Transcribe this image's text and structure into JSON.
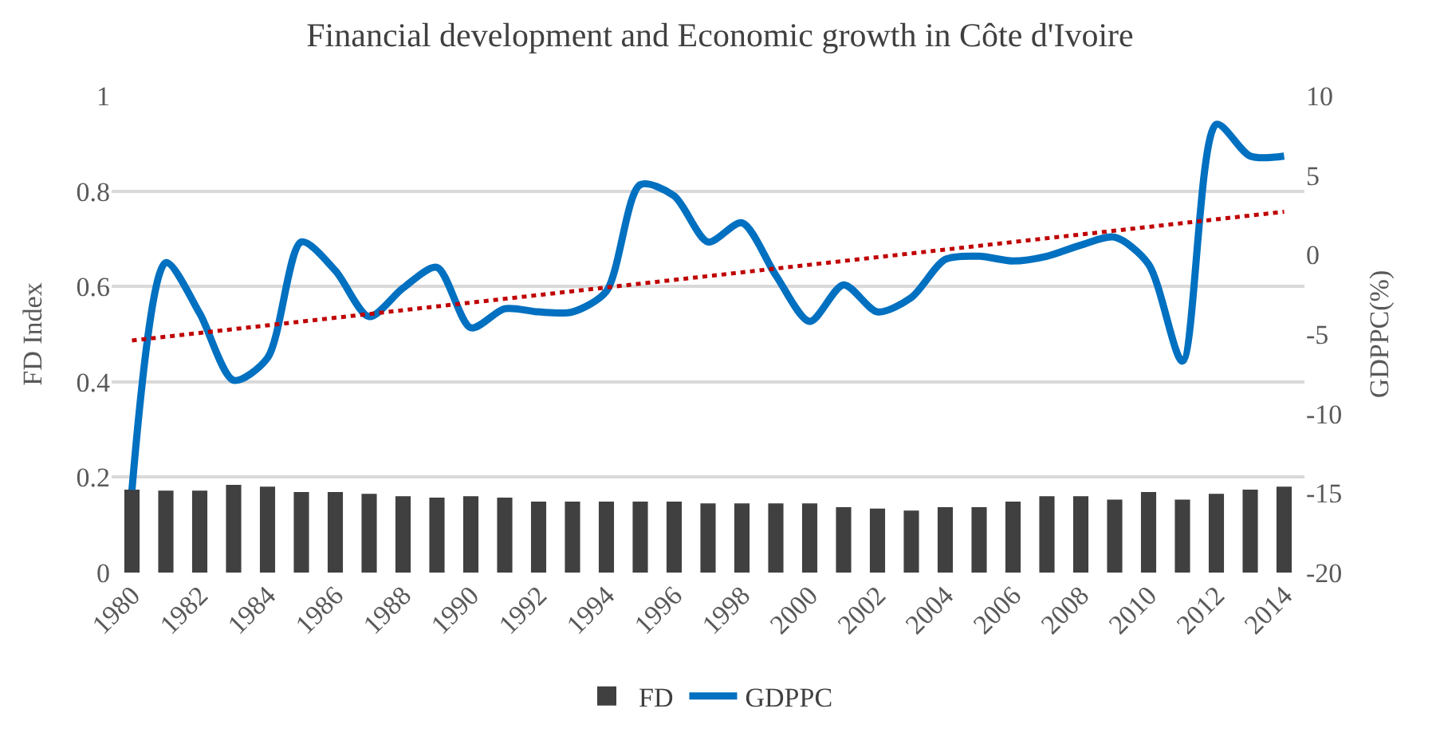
{
  "chart_data": {
    "type": "bar",
    "title": "Financial development and Economic growth in Côte d'Ivoire",
    "ylabel": "FD Index",
    "y2label": "GDPPC(%)",
    "categories": [
      "1980",
      null,
      "1982",
      null,
      "1984",
      null,
      "1986",
      null,
      "1988",
      null,
      "1990",
      null,
      "1992",
      null,
      "1994",
      null,
      "1996",
      null,
      "1998",
      null,
      "2000",
      null,
      "2002",
      null,
      "2004",
      null,
      "2006",
      null,
      "2008",
      null,
      "2010",
      null,
      "2012",
      null,
      "2014"
    ],
    "series": [
      {
        "name": "FD",
        "color": "#404040",
        "values": [
          0.174,
          0.172,
          0.172,
          0.184,
          0.18,
          0.169,
          0.169,
          0.165,
          0.16,
          0.157,
          0.16,
          0.157,
          0.149,
          0.149,
          0.149,
          0.149,
          0.149,
          0.145,
          0.145,
          0.145,
          0.145,
          0.137,
          0.134,
          0.13,
          0.137,
          0.137,
          0.149,
          0.16,
          0.16,
          0.153,
          0.169,
          0.153,
          0.165,
          0.174,
          0.18
        ]
      },
      {
        "name": "GDPPC",
        "type": "line",
        "axis": "y2",
        "color": "#0070c0",
        "line_style": "solid",
        "values": [
          -14.8,
          -0.5,
          -3.7,
          -7.9,
          -6.5,
          0.8,
          -1.0,
          -3.9,
          -2.1,
          -0.8,
          -4.6,
          -3.4,
          -3.6,
          -3.6,
          -2.3,
          4.4,
          3.7,
          0.8,
          2.0,
          -1.3,
          -4.2,
          -1.9,
          -3.6,
          -2.7,
          -0.3,
          -0.1,
          -0.4,
          -0.1,
          0.6,
          1.1,
          -0.6,
          -6.7,
          8.2,
          6.2,
          6.2
        ]
      },
      {
        "type": "line",
        "axis": "y2",
        "color": "#c00000",
        "line_style": "dotted",
        "values": [
          -5.4,
          null,
          null,
          null,
          null,
          null,
          null,
          null,
          null,
          null,
          null,
          null,
          null,
          null,
          null,
          null,
          null,
          null,
          null,
          null,
          null,
          null,
          null,
          null,
          null,
          null,
          null,
          null,
          null,
          null,
          null,
          null,
          null,
          null,
          2.7
        ]
      }
    ],
    "ylim": [
      0,
      1
    ],
    "yticks": [
      0,
      0.2,
      0.4,
      0.6,
      0.8,
      1
    ],
    "y2lim": [
      -20,
      10
    ],
    "y2ticks": [
      -20,
      -15,
      -10,
      -5,
      0,
      5,
      10
    ],
    "grid": "y",
    "legend": "bottom"
  }
}
